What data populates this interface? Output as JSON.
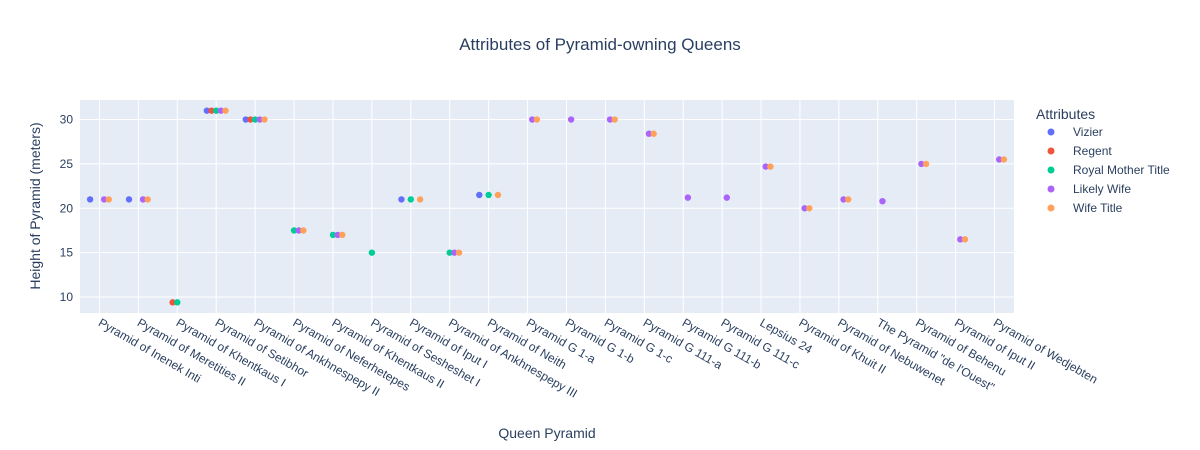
{
  "chart_data": {
    "type": "scatter",
    "title": "Attributes of Pyramid-owning Queens",
    "xlabel": "Queen Pyramid",
    "ylabel": "Height of Pyramid (meters)",
    "ylim": [
      8.2,
      32.2
    ],
    "yticks": [
      10,
      15,
      20,
      25,
      30
    ],
    "grid": true,
    "legend_title": "Attributes",
    "legend_position": "right",
    "categories": [
      "Pyramid of Inenek Inti",
      "Pyramid of Meretities II",
      "Pyramid of Khentkaus I",
      "Pyramid of Setibhor",
      "Pyramid of Ankhnespepy II",
      "Pyramid of Neferhetepes",
      "Pyramid of Khentkaus II",
      "Pyramid of Sesheshet I",
      "Pyramid of Iput I",
      "Pyramid of Ankhnespepy III",
      "Pyramid of Neith",
      "Pyramid G 1-a",
      "Pyramid G 1-b",
      "Pyramid G 1-c",
      "Pyramid G 111-a",
      "Pyramid G 111-b",
      "Pyramid G 111-c",
      "Lepsius 24",
      "Pyramid of Khuit II",
      "Pyramid of Nebuwenet",
      "The Pyramid \"de l'Ouest\"",
      "Pyramid of Behenu",
      "Pyramid of Iput II",
      "Pyramid of Wedjebten"
    ],
    "series": [
      {
        "name": "Vizier",
        "color": "#636efa",
        "points": [
          {
            "category": 0,
            "y": 21.0
          },
          {
            "category": 1,
            "y": 21.0
          },
          {
            "category": 3,
            "y": 31.0
          },
          {
            "category": 4,
            "y": 30.0
          },
          {
            "category": 8,
            "y": 21.0
          },
          {
            "category": 10,
            "y": 21.5
          }
        ]
      },
      {
        "name": "Regent",
        "color": "#ef553b",
        "points": [
          {
            "category": 2,
            "y": 9.4
          },
          {
            "category": 3,
            "y": 31.0
          },
          {
            "category": 4,
            "y": 30.0
          }
        ]
      },
      {
        "name": "Royal Mother Title",
        "color": "#00cc96",
        "points": [
          {
            "category": 2,
            "y": 9.4
          },
          {
            "category": 3,
            "y": 31.0
          },
          {
            "category": 4,
            "y": 30.0
          },
          {
            "category": 5,
            "y": 17.5
          },
          {
            "category": 6,
            "y": 17.0
          },
          {
            "category": 7,
            "y": 15.0
          },
          {
            "category": 8,
            "y": 21.0
          },
          {
            "category": 9,
            "y": 15.0
          },
          {
            "category": 10,
            "y": 21.5
          }
        ]
      },
      {
        "name": "Likely Wife",
        "color": "#ab63fa",
        "points": [
          {
            "category": 0,
            "y": 21.0
          },
          {
            "category": 1,
            "y": 21.0
          },
          {
            "category": 3,
            "y": 31.0
          },
          {
            "category": 4,
            "y": 30.0
          },
          {
            "category": 5,
            "y": 17.5
          },
          {
            "category": 6,
            "y": 17.0
          },
          {
            "category": 9,
            "y": 15.0
          },
          {
            "category": 11,
            "y": 30.0
          },
          {
            "category": 12,
            "y": 30.0
          },
          {
            "category": 13,
            "y": 30.0
          },
          {
            "category": 14,
            "y": 28.4
          },
          {
            "category": 15,
            "y": 21.2
          },
          {
            "category": 16,
            "y": 21.2
          },
          {
            "category": 17,
            "y": 24.7
          },
          {
            "category": 18,
            "y": 20.0
          },
          {
            "category": 19,
            "y": 21.0
          },
          {
            "category": 20,
            "y": 20.8
          },
          {
            "category": 21,
            "y": 25.0
          },
          {
            "category": 22,
            "y": 16.5
          },
          {
            "category": 23,
            "y": 25.5
          }
        ]
      },
      {
        "name": "Wife Title",
        "color": "#ffa15a",
        "points": [
          {
            "category": 0,
            "y": 21.0
          },
          {
            "category": 1,
            "y": 21.0
          },
          {
            "category": 3,
            "y": 31.0
          },
          {
            "category": 4,
            "y": 30.0
          },
          {
            "category": 5,
            "y": 17.5
          },
          {
            "category": 6,
            "y": 17.0
          },
          {
            "category": 8,
            "y": 21.0
          },
          {
            "category": 9,
            "y": 15.0
          },
          {
            "category": 10,
            "y": 21.5
          },
          {
            "category": 11,
            "y": 30.0
          },
          {
            "category": 13,
            "y": 30.0
          },
          {
            "category": 14,
            "y": 28.4
          },
          {
            "category": 17,
            "y": 24.7
          },
          {
            "category": 18,
            "y": 20.0
          },
          {
            "category": 19,
            "y": 21.0
          },
          {
            "category": 21,
            "y": 25.0
          },
          {
            "category": 22,
            "y": 16.5
          },
          {
            "category": 23,
            "y": 25.5
          }
        ]
      }
    ]
  }
}
